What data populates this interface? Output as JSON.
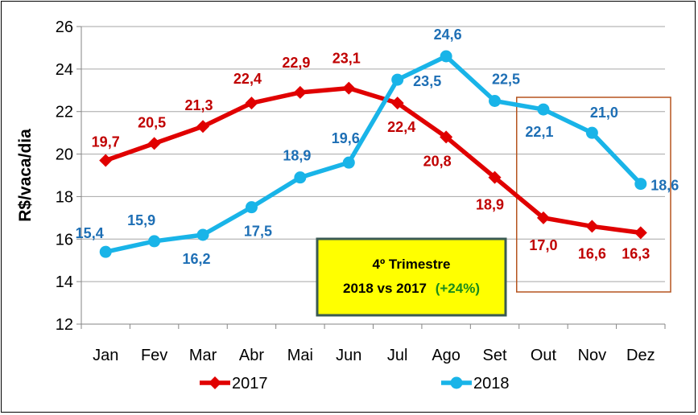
{
  "chart_data": {
    "type": "line",
    "ylabel": "R$/vaca/dia",
    "ylim": [
      12,
      26
    ],
    "yticks": [
      "12",
      "14",
      "16",
      "18",
      "20",
      "22",
      "24",
      "26"
    ],
    "categories": [
      "Jan",
      "Fev",
      "Mar",
      "Abr",
      "Mai",
      "Jun",
      "Jul",
      "Ago",
      "Set",
      "Out",
      "Nov",
      "Dez"
    ],
    "grid": "horizontal",
    "legend": "bottom",
    "series": [
      {
        "name": "2017",
        "color": "#E00000",
        "label_color": "#C00000",
        "marker": "diamond",
        "values": [
          19.7,
          20.5,
          21.3,
          22.4,
          22.9,
          23.1,
          22.4,
          20.8,
          18.9,
          17.0,
          16.6,
          16.3
        ],
        "labels": [
          "19,7",
          "20,5",
          "21,3",
          "22,4",
          "22,9",
          "23,1",
          "22,4",
          "20,8",
          "18,9",
          "17,0",
          "16,6",
          "16,3"
        ]
      },
      {
        "name": "2018",
        "color": "#19B4E8",
        "label_color": "#1E6FB5",
        "marker": "circle",
        "values": [
          15.4,
          15.9,
          16.2,
          17.5,
          18.9,
          19.6,
          23.5,
          24.6,
          22.5,
          22.1,
          21.0,
          18.6
        ],
        "labels": [
          "15,4",
          "15,9",
          "16,2",
          "17,5",
          "18,9",
          "19,6",
          "23,5",
          "24,6",
          "22,5",
          "22,1",
          "21,0",
          "18,6"
        ]
      }
    ],
    "highlight": {
      "from": "Out",
      "to": "Dez",
      "border_color": "#B5541F"
    },
    "annotation": {
      "line1": "4º Trimestre",
      "line2": "2018 vs 2017",
      "pct": "(+24%)",
      "background": "#FFFF00",
      "border_color": "#3A5A52",
      "pct_color": "#1A8C1A"
    }
  }
}
